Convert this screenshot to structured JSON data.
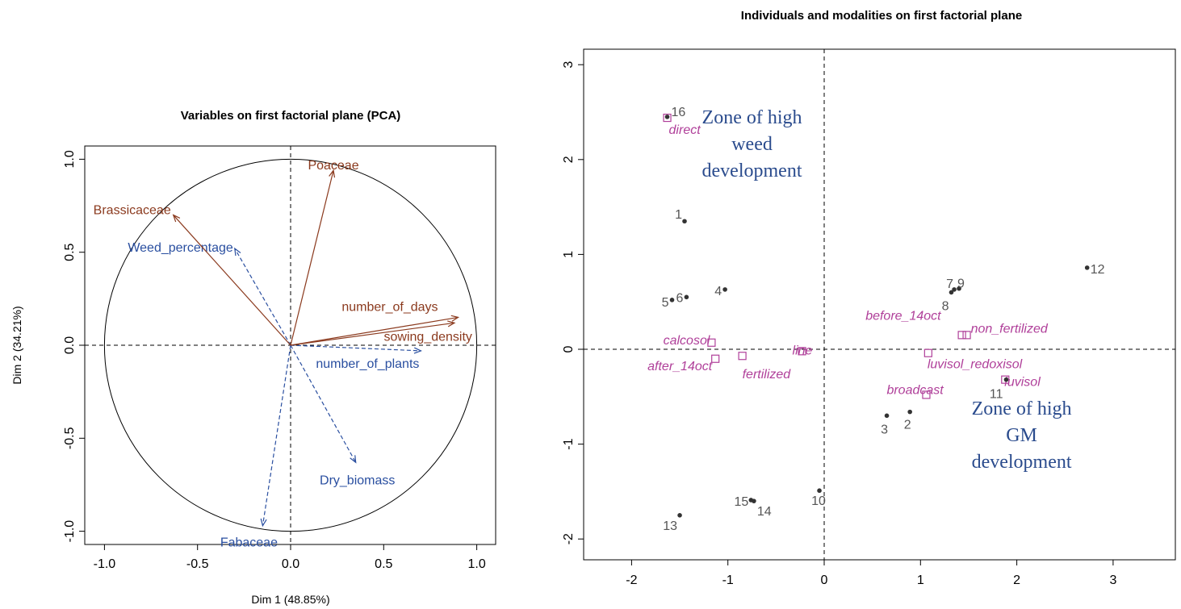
{
  "colors": {
    "active_var": "#8b3a1e",
    "supp_var": "#2a4fa0",
    "individual": "#555555",
    "modality": "#b0409a",
    "zone_text": "#2a4b8d",
    "axis": "#000000"
  },
  "chart_data": [
    {
      "type": "scatter",
      "subtype": "pca-correlation-circle",
      "title": "Variables on first factorial plane (PCA)",
      "xlabel": "Dim 1 (48.85%)",
      "ylabel": "Dim 2 (34.21%)",
      "xlim": [
        -1.2,
        1.2
      ],
      "ylim": [
        -1.1,
        1.1
      ],
      "xticks": [
        -1.0,
        -0.5,
        0.0,
        0.5,
        1.0
      ],
      "yticks": [
        -1.0,
        -0.5,
        0.0,
        0.5,
        1.0
      ],
      "xtick_labels": [
        "-1.0",
        "-0.5",
        "0.0",
        "0.5",
        "1.0"
      ],
      "ytick_labels": [
        "-1.0",
        "-0.5",
        "0.0",
        "0.5",
        "1.0"
      ],
      "circle_radius": 1,
      "active_variables": [
        {
          "name": "Poaceae",
          "x": 0.23,
          "y": 0.94
        },
        {
          "name": "Brassicaceae",
          "x": -0.63,
          "y": 0.7
        },
        {
          "name": "number_of_days",
          "x": 0.9,
          "y": 0.15
        },
        {
          "name": "sowing_density",
          "x": 0.88,
          "y": 0.12
        }
      ],
      "supplementary_variables": [
        {
          "name": "Weed_percentage",
          "x": -0.3,
          "y": 0.52
        },
        {
          "name": "number_of_plants",
          "x": 0.7,
          "y": -0.03
        },
        {
          "name": "Dry_biomass",
          "x": 0.35,
          "y": -0.63
        },
        {
          "name": "Fabaceae",
          "x": -0.15,
          "y": -0.97
        }
      ]
    },
    {
      "type": "scatter",
      "subtype": "individuals-and-modalities",
      "title": "Individuals and modalities on first factorial plane",
      "xlabel": "",
      "ylabel": "",
      "xlim": [
        -2.3,
        3.6
      ],
      "ylim": [
        -2.3,
        3.1
      ],
      "xticks": [
        -2,
        -1,
        0,
        1,
        2,
        3
      ],
      "yticks": [
        -2,
        -1,
        0,
        1,
        2,
        3
      ],
      "xtick_labels": [
        "-2",
        "-1",
        "0",
        "1",
        "2",
        "3"
      ],
      "ytick_labels": [
        "-2",
        "-1",
        "0",
        "1",
        "2",
        "3"
      ],
      "individuals": [
        {
          "label": "16",
          "x": -1.63,
          "y": 2.45
        },
        {
          "label": "1",
          "x": -1.45,
          "y": 1.35
        },
        {
          "label": "5",
          "x": -1.58,
          "y": 0.52
        },
        {
          "label": "6",
          "x": -1.43,
          "y": 0.55
        },
        {
          "label": "4",
          "x": -1.03,
          "y": 0.63
        },
        {
          "label": "7",
          "x": 1.35,
          "y": 0.63
        },
        {
          "label": "9",
          "x": 1.4,
          "y": 0.64
        },
        {
          "label": "8",
          "x": 1.32,
          "y": 0.6
        },
        {
          "label": "12",
          "x": 2.73,
          "y": 0.86
        },
        {
          "label": "11",
          "x": 1.89,
          "y": -0.32
        },
        {
          "label": "3",
          "x": 0.65,
          "y": -0.7
        },
        {
          "label": "2",
          "x": 0.89,
          "y": -0.66
        },
        {
          "label": "10",
          "x": -0.05,
          "y": -1.49
        },
        {
          "label": "15",
          "x": -0.76,
          "y": -1.59
        },
        {
          "label": "14",
          "x": -0.73,
          "y": -1.6
        },
        {
          "label": "13",
          "x": -1.5,
          "y": -1.75
        }
      ],
      "modalities": [
        {
          "label": "direct",
          "x": -1.63,
          "y": 2.44
        },
        {
          "label": "calcosol",
          "x": -1.17,
          "y": 0.07
        },
        {
          "label": "after_14oct",
          "x": -1.13,
          "y": -0.1
        },
        {
          "label": "fertilized",
          "x": -0.85,
          "y": -0.07
        },
        {
          "label": "line",
          "x": -0.23,
          "y": -0.02
        },
        {
          "label": "before_14oct",
          "x": 1.43,
          "y": 0.15
        },
        {
          "label": "non_fertilized",
          "x": 1.48,
          "y": 0.15
        },
        {
          "label": "luvisol_redoxisol",
          "x": 1.08,
          "y": -0.04
        },
        {
          "label": "luvisol",
          "x": 1.88,
          "y": -0.32
        },
        {
          "label": "broadcast",
          "x": 1.06,
          "y": -0.48
        }
      ],
      "annotations": [
        {
          "lines": [
            "Zone of high",
            "weed",
            "development"
          ],
          "x": -0.75,
          "y": 2.45
        },
        {
          "lines": [
            "Zone of high",
            "GM",
            "development"
          ],
          "x": 2.05,
          "y": -0.62
        }
      ]
    }
  ]
}
